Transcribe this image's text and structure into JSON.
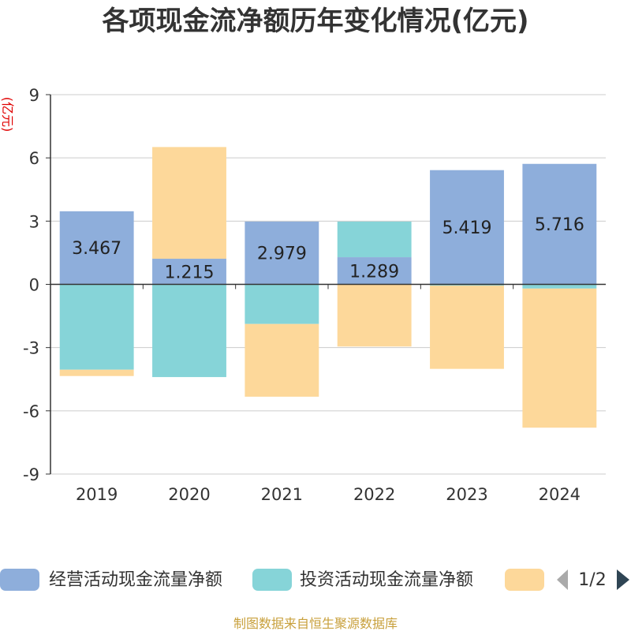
{
  "chart_data": {
    "type": "bar",
    "stacked": true,
    "title": "各项现金流净额历年变化情况(亿元)",
    "ylabel": "(亿元)",
    "xlabel": "",
    "categories": [
      "2019",
      "2020",
      "2021",
      "2022",
      "2023",
      "2024"
    ],
    "yticks": [
      "9",
      "6",
      "3",
      "0",
      "-3",
      "-6",
      "-9"
    ],
    "ylim": [
      -9,
      9
    ],
    "grid": true,
    "series": [
      {
        "name": "经营活动现金流量净额",
        "color": "#8eaedb",
        "values": [
          3.467,
          1.215,
          2.979,
          1.289,
          5.419,
          5.716
        ],
        "labels": [
          "3.467",
          "1.215",
          "2.979",
          "1.289",
          "5.419",
          "5.716"
        ]
      },
      {
        "name": "投资活动现金流量净额",
        "color": "#86d4d8",
        "values": [
          -4.05,
          -4.4,
          -1.88,
          1.69,
          -0.06,
          -0.2
        ]
      },
      {
        "name": "",
        "color": "#fdd89a",
        "values": [
          -0.3,
          5.3,
          -3.45,
          -2.95,
          -3.95,
          -6.6
        ]
      }
    ]
  },
  "legend": {
    "page_indicator": "1/2"
  },
  "footer": {
    "source": "制图数据来自恒生聚源数据库"
  }
}
